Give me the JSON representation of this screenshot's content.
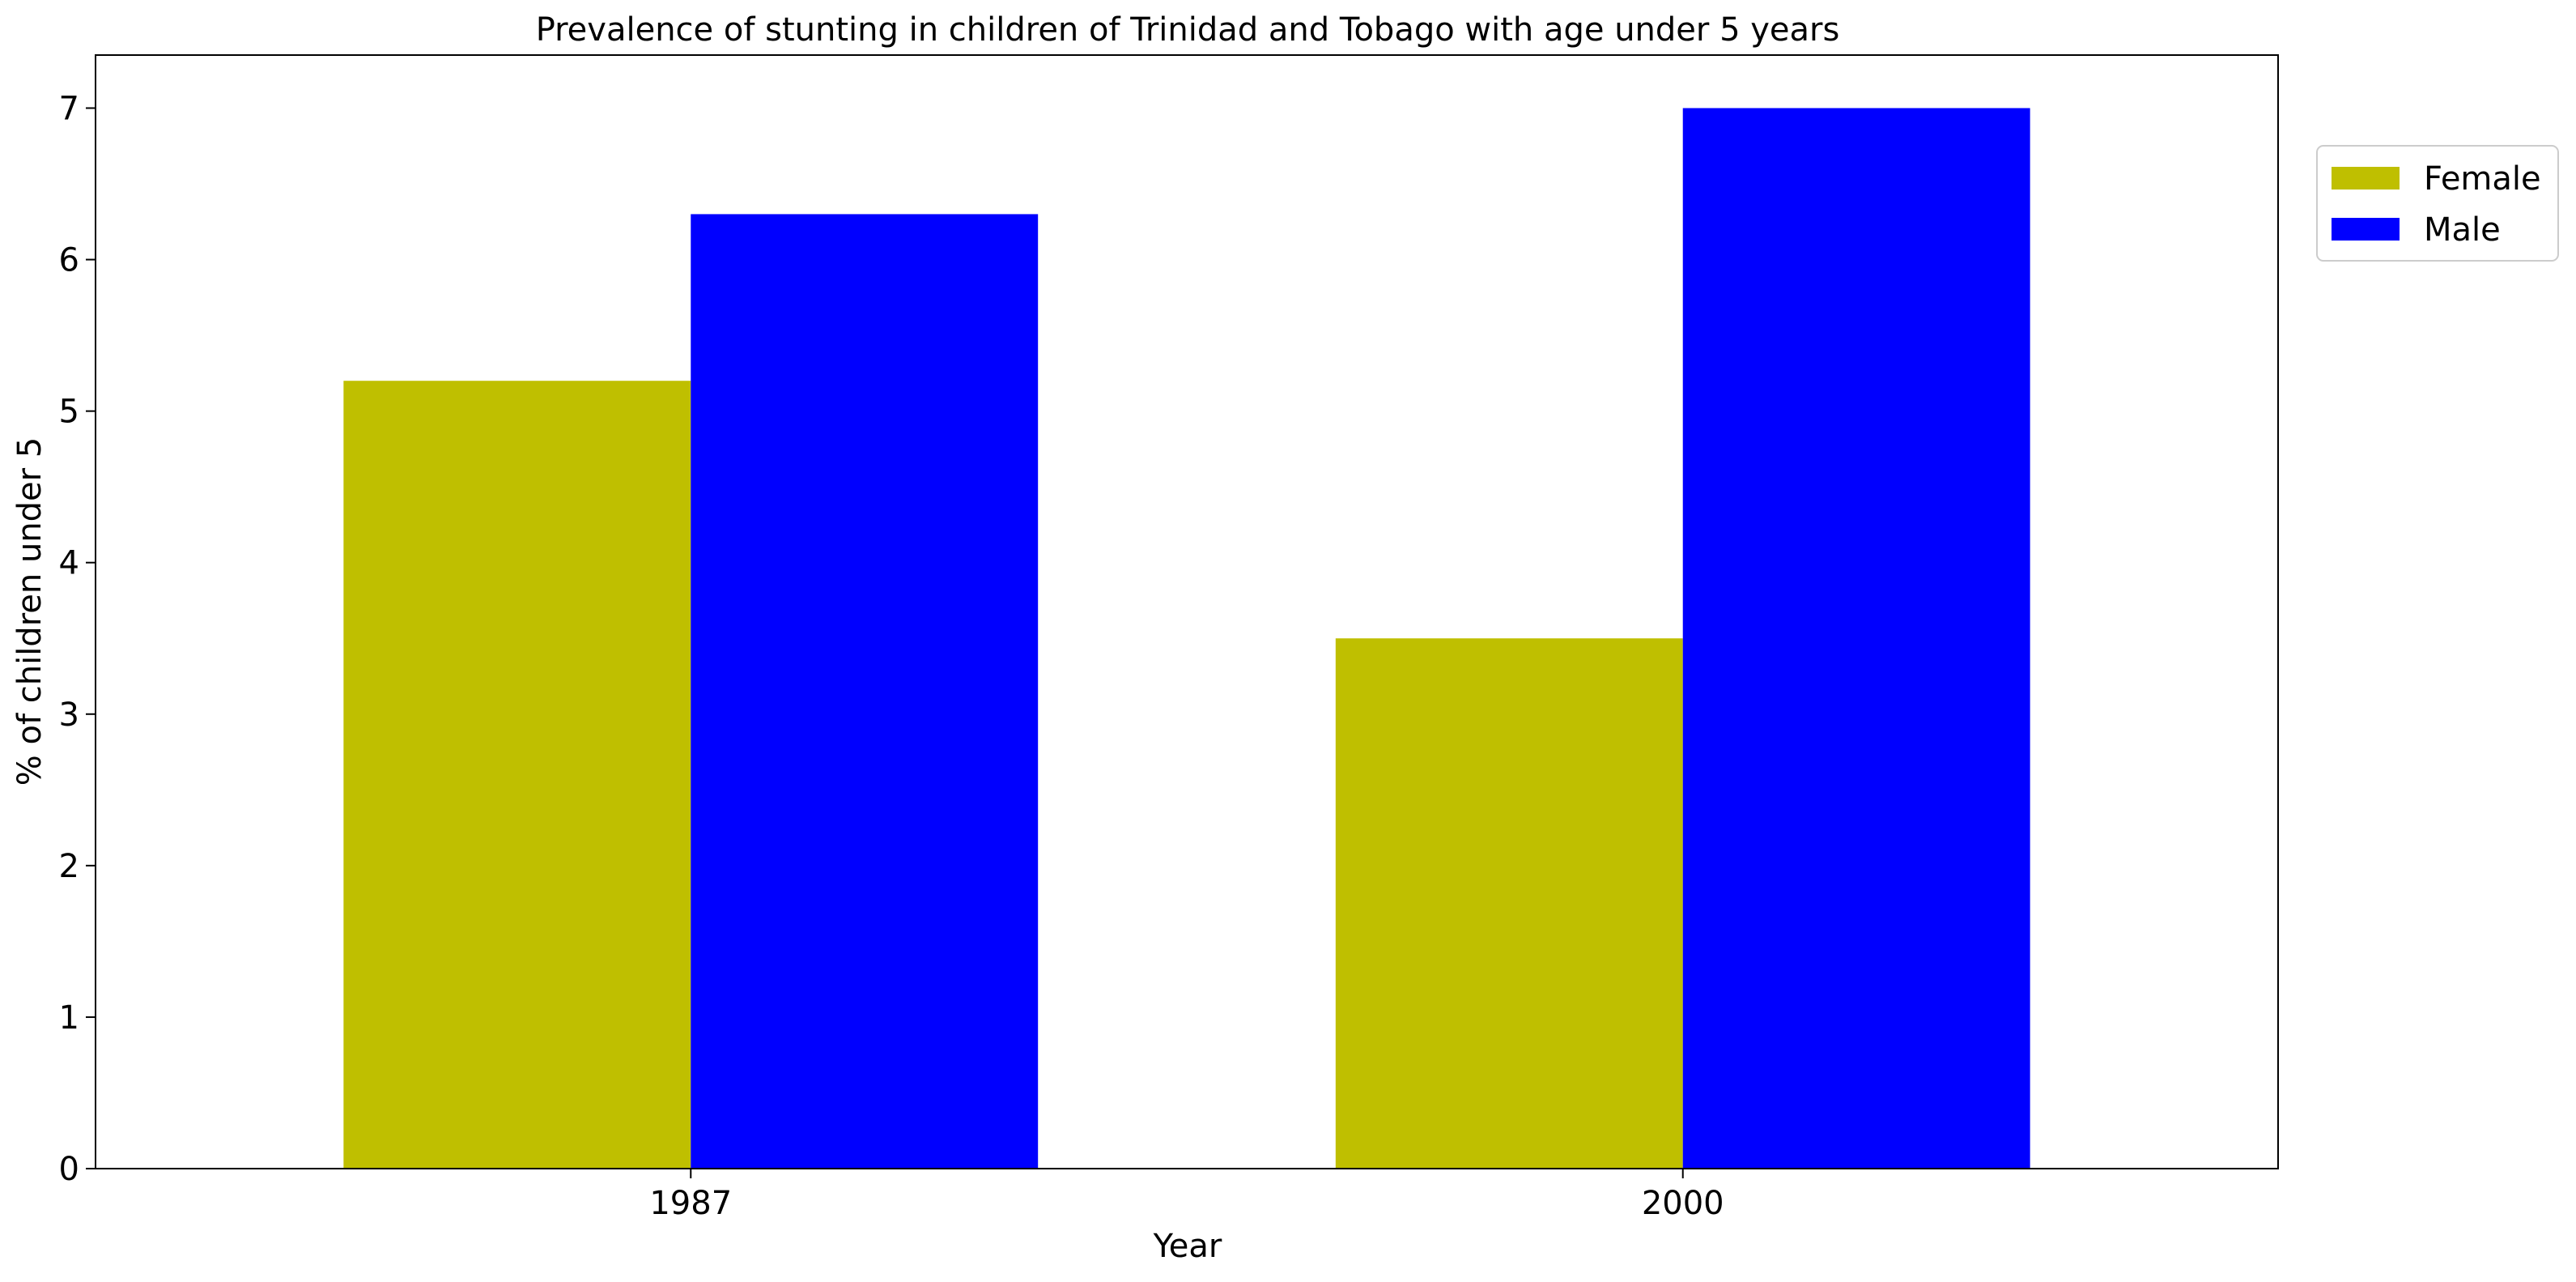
{
  "chart_data": {
    "type": "bar",
    "title": "Prevalence of stunting in children of Trinidad and Tobago with age under 5 years",
    "xlabel": "Year",
    "ylabel": "% of children under 5",
    "categories": [
      "1987",
      "2000"
    ],
    "series": [
      {
        "name": "Female",
        "color": "#bfbf00",
        "values": [
          5.2,
          3.5
        ]
      },
      {
        "name": "Male",
        "color": "#0000ff",
        "values": [
          6.3,
          7.0
        ]
      }
    ],
    "ylim": [
      0,
      7.35
    ],
    "yticks": [
      0,
      1,
      2,
      3,
      4,
      5,
      6,
      7
    ],
    "grid": false,
    "legend": "upper-right-outside"
  }
}
